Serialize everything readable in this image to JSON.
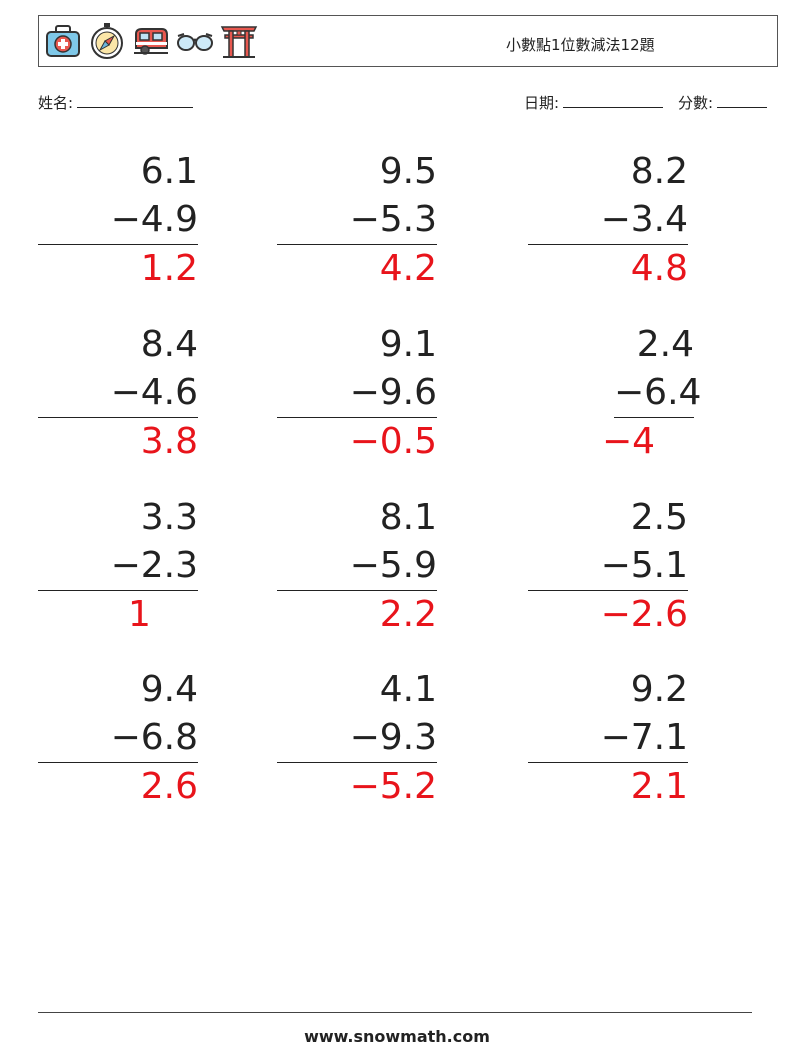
{
  "header": {
    "title": "小數點1位數減法12題",
    "icons": [
      "first-aid-kit-icon",
      "compass-icon",
      "caravan-icon",
      "glasses-icon",
      "torii-gate-icon"
    ]
  },
  "fields": {
    "name_label": "姓名:",
    "date_label": "日期:",
    "score_label": "分數:"
  },
  "problems": [
    {
      "top": "6.1",
      "bottom": "−4.9",
      "answer": "1.2"
    },
    {
      "top": "9.5",
      "bottom": "−5.3",
      "answer": "4.2"
    },
    {
      "top": "8.2",
      "bottom": "−3.4",
      "answer": "4.8"
    },
    {
      "top": "8.4",
      "bottom": "−4.6",
      "answer": "3.8"
    },
    {
      "top": "9.1",
      "bottom": "−9.6",
      "answer": "−0.5"
    },
    {
      "top": "2.4",
      "bottom": "−6.4",
      "answer": "−4"
    },
    {
      "top": "3.3",
      "bottom": "−2.3",
      "answer": "1"
    },
    {
      "top": "8.1",
      "bottom": "−5.9",
      "answer": "2.2"
    },
    {
      "top": "2.5",
      "bottom": "−5.1",
      "answer": "−2.6"
    },
    {
      "top": "9.4",
      "bottom": "−6.8",
      "answer": "2.6"
    },
    {
      "top": "4.1",
      "bottom": "−9.3",
      "answer": "−5.2"
    },
    {
      "top": "9.2",
      "bottom": "−7.1",
      "answer": "2.1"
    }
  ],
  "footer": {
    "site": "www.snowmath.com"
  }
}
